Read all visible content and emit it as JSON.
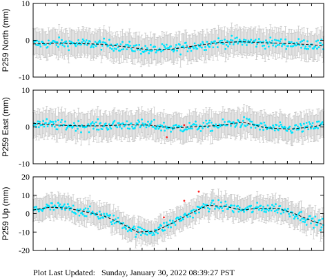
{
  "footer": {
    "label": "Plot Last Updated:",
    "timestamp": "Sunday, January 30, 2022 08:39:27 PST"
  },
  "style": {
    "point_color": "#00e5ff",
    "errorbar_color": "#c8c8c8",
    "model_color": "#000000",
    "outlier_color": "#ff2020",
    "axis_color": "#000000"
  },
  "chart_data": [
    {
      "type": "scatter",
      "ylabel": "P259 North (mm)",
      "ylim": [
        -10,
        10
      ],
      "yticks": [
        -10,
        0,
        10
      ],
      "xlim": [
        0,
        100
      ],
      "errorbar_half_width": 3.5,
      "model_x": [
        0,
        8,
        16,
        24,
        32,
        40,
        48,
        56,
        64,
        72,
        80,
        88,
        96,
        100
      ],
      "model_y": [
        -1,
        -0.8,
        -0.9,
        -1.1,
        -1.8,
        -2.6,
        -2.4,
        -1.5,
        -0.6,
        -0.4,
        -0.7,
        -0.9,
        -1.2,
        -1.6
      ],
      "outliers": [
        [
          54,
          -1.8
        ]
      ]
    },
    {
      "type": "scatter",
      "ylabel": "P259 East (mm)",
      "ylim": [
        -10,
        10
      ],
      "yticks": [
        -10,
        0,
        10
      ],
      "xlim": [
        0,
        100
      ],
      "errorbar_half_width": 3.5,
      "model_x": [
        0,
        8,
        16,
        24,
        32,
        40,
        48,
        56,
        64,
        72,
        80,
        88,
        96,
        100
      ],
      "model_y": [
        1,
        0.5,
        0.3,
        0.3,
        0.6,
        0.5,
        -0.3,
        0.1,
        0.4,
        1.3,
        -0.2,
        -0.6,
        0,
        0.7
      ],
      "outliers": [
        [
          52,
          0.5
        ],
        [
          46,
          -2.8
        ]
      ]
    },
    {
      "type": "scatter",
      "ylabel": "P259 Up (mm)",
      "ylim": [
        -20,
        20
      ],
      "yticks": [
        -20,
        -10,
        0,
        10,
        20
      ],
      "xlim": [
        0,
        100
      ],
      "errorbar_half_width": 6,
      "model_x": [
        0,
        6,
        12,
        18,
        24,
        30,
        36,
        42,
        48,
        54,
        60,
        66,
        72,
        78,
        84,
        90,
        96,
        100
      ],
      "model_y": [
        2,
        3.5,
        3,
        1,
        -1,
        -5,
        -10,
        -9.5,
        -5,
        0,
        4.5,
        4,
        2,
        3,
        3,
        0,
        -4,
        -6
      ],
      "outliers": [
        [
          45,
          -2
        ],
        [
          52,
          7
        ],
        [
          57,
          12
        ]
      ]
    }
  ]
}
